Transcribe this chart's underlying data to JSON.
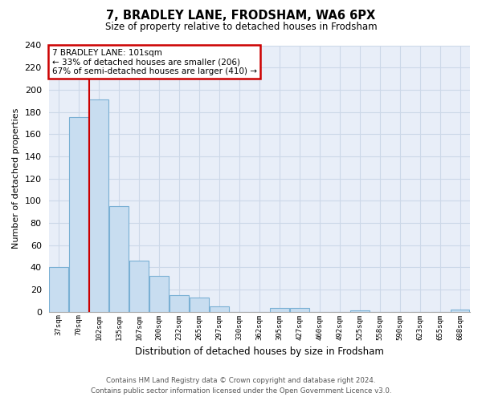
{
  "title": "7, BRADLEY LANE, FRODSHAM, WA6 6PX",
  "subtitle": "Size of property relative to detached houses in Frodsham",
  "xlabel": "Distribution of detached houses by size in Frodsham",
  "ylabel": "Number of detached properties",
  "bin_labels": [
    "37sqm",
    "70sqm",
    "102sqm",
    "135sqm",
    "167sqm",
    "200sqm",
    "232sqm",
    "265sqm",
    "297sqm",
    "330sqm",
    "362sqm",
    "395sqm",
    "427sqm",
    "460sqm",
    "492sqm",
    "525sqm",
    "558sqm",
    "590sqm",
    "623sqm",
    "655sqm",
    "688sqm"
  ],
  "bar_heights": [
    40,
    175,
    191,
    95,
    46,
    32,
    15,
    13,
    5,
    0,
    0,
    3,
    3,
    0,
    0,
    1,
    0,
    0,
    0,
    0,
    2
  ],
  "bar_color": "#c8ddf0",
  "bar_edge_color": "#7ab0d4",
  "marker_index": 2,
  "marker_color": "#cc0000",
  "ylim": [
    0,
    240
  ],
  "yticks": [
    0,
    20,
    40,
    60,
    80,
    100,
    120,
    140,
    160,
    180,
    200,
    220,
    240
  ],
  "annotation_title": "7 BRADLEY LANE: 101sqm",
  "annotation_line1": "← 33% of detached houses are smaller (206)",
  "annotation_line2": "67% of semi-detached houses are larger (410) →",
  "annotation_box_color": "#ffffff",
  "annotation_box_edge": "#cc0000",
  "footer_line1": "Contains HM Land Registry data © Crown copyright and database right 2024.",
  "footer_line2": "Contains public sector information licensed under the Open Government Licence v3.0.",
  "background_color": "#ffffff",
  "grid_color": "#ccd8e8",
  "plot_bg_color": "#e8eef8"
}
